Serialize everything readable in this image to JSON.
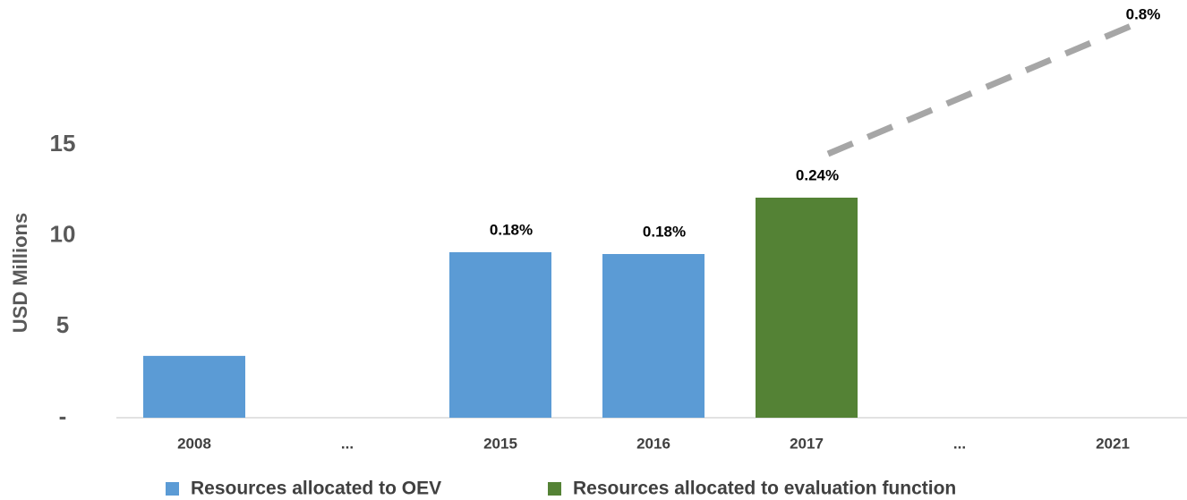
{
  "chart_data": {
    "type": "bar",
    "y_label": "USD Millions",
    "categories": [
      "2008",
      "...",
      "2015",
      "2016",
      "2017",
      "...",
      "2021"
    ],
    "series": [
      {
        "name": "Resources allocated to OEV",
        "color": "#5b9bd5",
        "values": [
          3.4,
          null,
          9.1,
          9.0,
          null,
          null,
          null
        ]
      },
      {
        "name": "Resources allocated to evaluation function",
        "color": "#548235",
        "values": [
          null,
          null,
          null,
          null,
          12.1,
          null,
          null
        ]
      }
    ],
    "share": {
      "values": [
        null,
        null,
        0.18,
        0.18,
        0.24,
        null,
        0.8
      ],
      "value_labels": [
        null,
        null,
        "0.18%",
        "0.18%",
        "0.24%",
        null,
        "0.8%"
      ],
      "color": "#a6a6a6"
    },
    "ylim": [
      0,
      15
    ],
    "yticks": [
      {
        "value": 0,
        "label": "-"
      },
      5,
      10,
      15
    ],
    "grid": false
  }
}
